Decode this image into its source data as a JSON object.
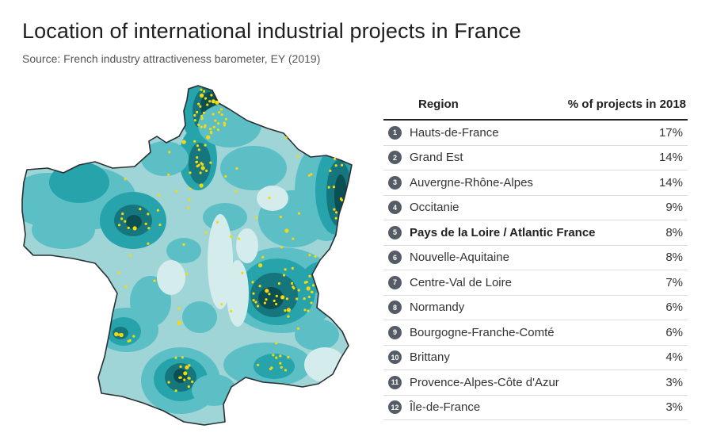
{
  "header": {
    "title": "Location of international industrial projects in France",
    "subtitle": "Source: French industry attractiveness barometer, EY (2019)"
  },
  "colors": {
    "level0": "#d4ecec",
    "level1": "#9fd5d6",
    "level2": "#5cbfc6",
    "level3": "#27a4ab",
    "level4": "#15777d",
    "level5": "#0a4f54",
    "project_dot": "#f5d90a",
    "rank_badge": "#555c66"
  },
  "table": {
    "headers": {
      "region": "Region",
      "pct": "% of projects in 2018"
    },
    "rows": [
      {
        "rank": "1",
        "region": "Hauts-de-France",
        "pct": "17%",
        "bold": false
      },
      {
        "rank": "2",
        "region": "Grand Est",
        "pct": "14%",
        "bold": false
      },
      {
        "rank": "3",
        "region": "Auvergne-Rhône-Alpes",
        "pct": "14%",
        "bold": false
      },
      {
        "rank": "4",
        "region": "Occitanie",
        "pct": "9%",
        "bold": false
      },
      {
        "rank": "5",
        "region": "Pays de la Loire / Atlantic France",
        "pct": "8%",
        "bold": true
      },
      {
        "rank": "6",
        "region": "Nouvelle-Aquitaine",
        "pct": "8%",
        "bold": false
      },
      {
        "rank": "7",
        "region": "Centre-Val de Loire",
        "pct": "7%",
        "bold": false
      },
      {
        "rank": "8",
        "region": "Normandy",
        "pct": "6%",
        "bold": false
      },
      {
        "rank": "9",
        "region": "Bourgogne-Franche-Comté",
        "pct": "6%",
        "bold": false
      },
      {
        "rank": "10",
        "region": "Brittany",
        "pct": "4%",
        "bold": false
      },
      {
        "rank": "11",
        "region": "Provence-Alpes-Côte d'Azur",
        "pct": "3%",
        "bold": false
      },
      {
        "rank": "12",
        "region": "Île-de-France",
        "pct": "3%",
        "bold": false
      }
    ]
  }
}
